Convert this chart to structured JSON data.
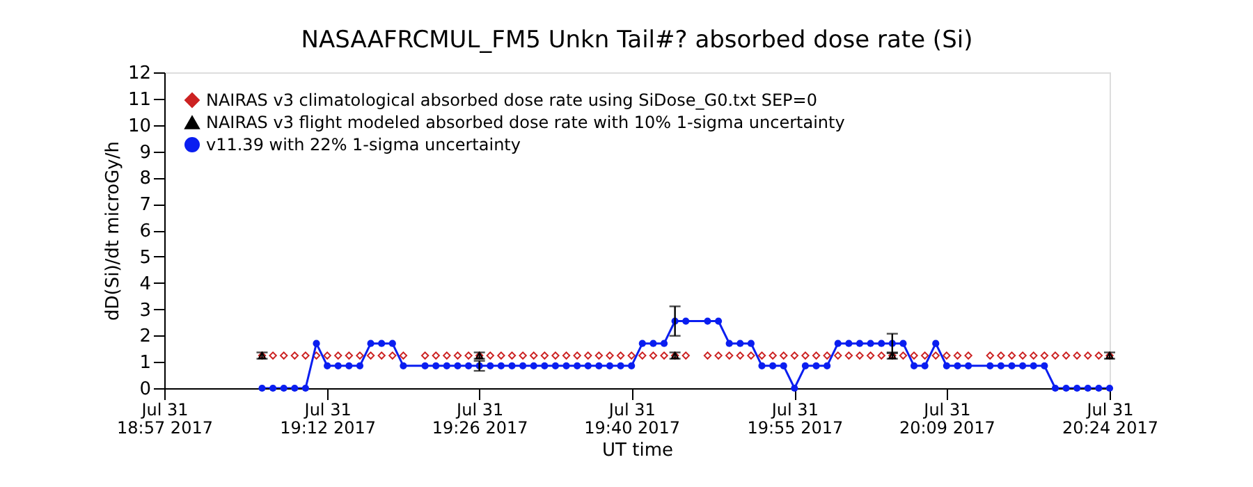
{
  "chart_data": {
    "type": "line",
    "title": "NASAAFRCMUL_FM5 Unkn Tail#? absorbed dose rate (Si)",
    "xlabel": "UT time",
    "ylabel": "dD(Si)/dt microGy/h",
    "xlim": [
      "2017-07-31T18:57",
      "2017-07-31T20:24"
    ],
    "xticks": [
      {
        "value": "2017-07-31T18:57",
        "label": "Jul 31\n18:57 2017"
      },
      {
        "value": "2017-07-31T19:12",
        "label": "Jul 31\n19:12 2017"
      },
      {
        "value": "2017-07-31T19:26",
        "label": "Jul 31\n19:26 2017"
      },
      {
        "value": "2017-07-31T19:40",
        "label": "Jul 31\n19:40 2017"
      },
      {
        "value": "2017-07-31T19:55",
        "label": "Jul 31\n19:55 2017"
      },
      {
        "value": "2017-07-31T20:09",
        "label": "Jul 31\n20:09 2017"
      },
      {
        "value": "2017-07-31T20:24",
        "label": "Jul 31\n20:24 2017"
      }
    ],
    "ylim": [
      0,
      12
    ],
    "yticks": [
      0,
      1,
      2,
      3,
      4,
      5,
      6,
      7,
      8,
      9,
      10,
      11,
      12
    ],
    "grid": false,
    "legend": "top left",
    "x": [
      "2017-07-31T19:06",
      "2017-07-31T19:07",
      "2017-07-31T19:08",
      "2017-07-31T19:09",
      "2017-07-31T19:10",
      "2017-07-31T19:11",
      "2017-07-31T19:12",
      "2017-07-31T19:13",
      "2017-07-31T19:14",
      "2017-07-31T19:15",
      "2017-07-31T19:16",
      "2017-07-31T19:17",
      "2017-07-31T19:18",
      "2017-07-31T19:19",
      "2017-07-31T19:21",
      "2017-07-31T19:22",
      "2017-07-31T19:23",
      "2017-07-31T19:24",
      "2017-07-31T19:25",
      "2017-07-31T19:26",
      "2017-07-31T19:27",
      "2017-07-31T19:28",
      "2017-07-31T19:29",
      "2017-07-31T19:30",
      "2017-07-31T19:31",
      "2017-07-31T19:32",
      "2017-07-31T19:33",
      "2017-07-31T19:34",
      "2017-07-31T19:35",
      "2017-07-31T19:36",
      "2017-07-31T19:37",
      "2017-07-31T19:38",
      "2017-07-31T19:39",
      "2017-07-31T19:40",
      "2017-07-31T19:41",
      "2017-07-31T19:42",
      "2017-07-31T19:43",
      "2017-07-31T19:44",
      "2017-07-31T19:45",
      "2017-07-31T19:47",
      "2017-07-31T19:48",
      "2017-07-31T19:49",
      "2017-07-31T19:50",
      "2017-07-31T19:51",
      "2017-07-31T19:52",
      "2017-07-31T19:53",
      "2017-07-31T19:54",
      "2017-07-31T19:55",
      "2017-07-31T19:56",
      "2017-07-31T19:57",
      "2017-07-31T19:58",
      "2017-07-31T19:59",
      "2017-07-31T20:00",
      "2017-07-31T20:01",
      "2017-07-31T20:02",
      "2017-07-31T20:03",
      "2017-07-31T20:04",
      "2017-07-31T20:05",
      "2017-07-31T20:06",
      "2017-07-31T20:07",
      "2017-07-31T20:08",
      "2017-07-31T20:09",
      "2017-07-31T20:10",
      "2017-07-31T20:11",
      "2017-07-31T20:13",
      "2017-07-31T20:14",
      "2017-07-31T20:15",
      "2017-07-31T20:16",
      "2017-07-31T20:17",
      "2017-07-31T20:18",
      "2017-07-31T20:19",
      "2017-07-31T20:20",
      "2017-07-31T20:21",
      "2017-07-31T20:22",
      "2017-07-31T20:23",
      "2017-07-31T20:24"
    ],
    "series": [
      {
        "name": "NAIRAS v3 climatological absorbed dose rate using SiDose_G0.txt SEP=0",
        "type": "scatter",
        "marker": "diamond",
        "color": "#cc2222",
        "values": [
          1.24,
          1.24,
          1.24,
          1.24,
          1.24,
          1.24,
          1.24,
          1.24,
          1.24,
          1.24,
          1.24,
          1.24,
          1.24,
          1.24,
          1.24,
          1.24,
          1.24,
          1.24,
          1.24,
          1.24,
          1.24,
          1.24,
          1.24,
          1.24,
          1.24,
          1.24,
          1.24,
          1.24,
          1.24,
          1.24,
          1.24,
          1.24,
          1.24,
          1.24,
          1.24,
          1.24,
          1.24,
          1.24,
          1.24,
          1.24,
          1.24,
          1.24,
          1.24,
          1.24,
          1.24,
          1.24,
          1.24,
          1.24,
          1.24,
          1.24,
          1.24,
          1.24,
          1.24,
          1.24,
          1.24,
          1.24,
          1.24,
          1.24,
          1.24,
          1.24,
          1.24,
          1.24,
          1.24,
          1.24,
          1.24,
          1.24,
          1.24,
          1.24,
          1.24,
          1.24,
          1.24,
          1.24,
          1.24,
          1.24,
          1.24,
          1.24
        ]
      },
      {
        "name": "NAIRAS v3 flight modeled absorbed dose rate with 10% 1-sigma uncertainty",
        "type": "scatter",
        "marker": "triangle",
        "color": "#000000",
        "x": [
          "2017-07-31T19:06",
          "2017-07-31T19:26",
          "2017-07-31T19:44",
          "2017-07-31T20:04",
          "2017-07-31T20:24"
        ],
        "values": [
          1.24,
          1.24,
          1.24,
          1.24,
          1.24
        ],
        "errors": [
          0.12,
          0.12,
          0.12,
          0.12,
          0.12
        ]
      },
      {
        "name": "v11.39 with 22% 1-sigma uncertainty",
        "marker": "circle",
        "line_style": "solid",
        "color": "#0a1ef0",
        "values": [
          0,
          0,
          0,
          0,
          0,
          1.7,
          0.85,
          0.85,
          0.85,
          0.85,
          1.7,
          1.7,
          1.7,
          0.85,
          0.85,
          0.85,
          0.85,
          0.85,
          0.85,
          0.85,
          0.85,
          0.85,
          0.85,
          0.85,
          0.85,
          0.85,
          0.85,
          0.85,
          0.85,
          0.85,
          0.85,
          0.85,
          0.85,
          0.85,
          1.7,
          1.7,
          1.7,
          2.55,
          2.55,
          2.55,
          2.55,
          1.7,
          1.7,
          1.7,
          0.85,
          0.85,
          0.85,
          0,
          0.85,
          0.85,
          0.85,
          1.7,
          1.7,
          1.7,
          1.7,
          1.7,
          1.7,
          1.7,
          0.85,
          0.85,
          1.7,
          0.85,
          0.85,
          0.85,
          0.85,
          0.85,
          0.85,
          0.85,
          0.85,
          0.85,
          0,
          0,
          0,
          0,
          0,
          0
        ],
        "errors": [
          null,
          null,
          null,
          null,
          null,
          null,
          null,
          null,
          null,
          null,
          null,
          null,
          null,
          null,
          null,
          null,
          null,
          null,
          null,
          0.19,
          null,
          null,
          null,
          null,
          null,
          null,
          null,
          null,
          null,
          null,
          null,
          null,
          null,
          null,
          null,
          null,
          null,
          0.56,
          null,
          null,
          null,
          null,
          null,
          null,
          null,
          null,
          null,
          null,
          null,
          null,
          null,
          null,
          null,
          null,
          null,
          null,
          0.37,
          null,
          null,
          null,
          null,
          null,
          null,
          null,
          null,
          null,
          null,
          null,
          null,
          null,
          null,
          null,
          null,
          null,
          null,
          null
        ]
      }
    ]
  }
}
